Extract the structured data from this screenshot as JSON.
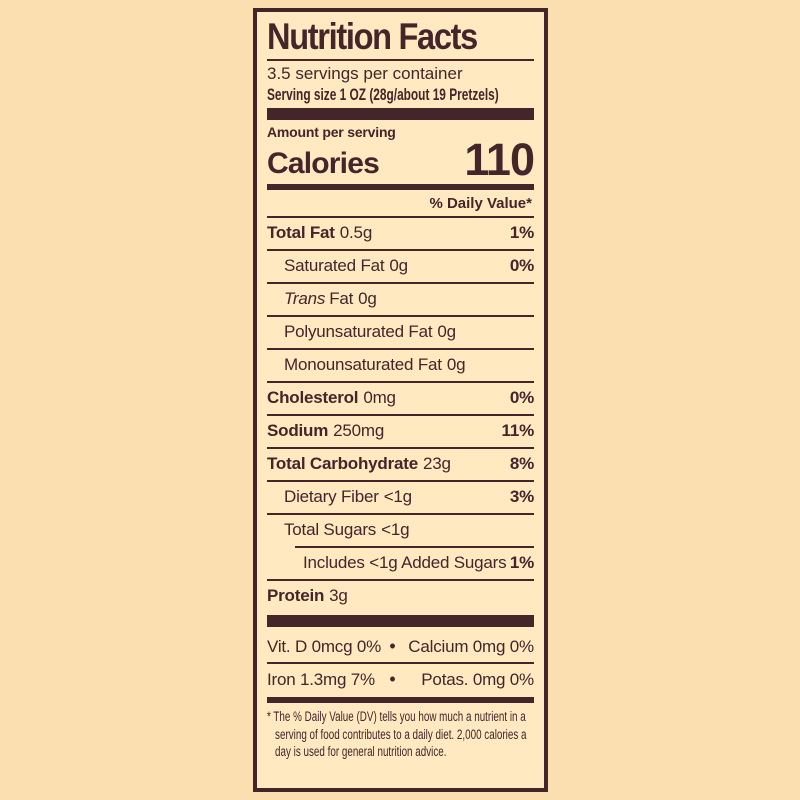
{
  "colors": {
    "page_bg": "#fcdfb1",
    "label_bg": "#fee9c1",
    "ink": "#43252a"
  },
  "label": {
    "title": "Nutrition Facts",
    "servings_per_container": "3.5 servings per container",
    "serving_size": "Serving size 1 OZ (28g/about 19 Pretzels)",
    "amount_per_serving": "Amount per serving",
    "calories_label": "Calories",
    "calories_value": "110",
    "daily_value_header": "% Daily Value*",
    "rows": [
      {
        "name": "Total Fat",
        "amount": "0.5g",
        "dv": "1%"
      },
      {
        "name": "Saturated Fat",
        "amount": "0g",
        "dv": "0%"
      },
      {
        "name_italic": "Trans",
        "name": "Fat",
        "amount": "0g",
        "dv": ""
      },
      {
        "name": "Polyunsaturated Fat",
        "amount": "0g",
        "dv": ""
      },
      {
        "name": "Monounsaturated Fat",
        "amount": "0g",
        "dv": ""
      },
      {
        "name": "Cholesterol",
        "amount": "0mg",
        "dv": "0%"
      },
      {
        "name": "Sodium",
        "amount": "250mg",
        "dv": "11%"
      },
      {
        "name": "Total Carbohydrate",
        "amount": "23g",
        "dv": "8%"
      },
      {
        "name": "Dietary Fiber",
        "amount": "<1g",
        "dv": "3%"
      },
      {
        "name": "Total Sugars",
        "amount": "<1g",
        "dv": ""
      },
      {
        "name": "Includes <1g Added Sugars",
        "amount": "",
        "dv": "1%"
      },
      {
        "name": "Protein",
        "amount": "3g",
        "dv": ""
      }
    ],
    "micros": {
      "bullet": "•",
      "rows": [
        {
          "left": "Vit. D 0mcg 0%",
          "right": "Calcium 0mg 0%"
        },
        {
          "left": "Iron 1.3mg 7%",
          "right": "Potas. 0mg 0%"
        }
      ]
    },
    "footnote": "* The % Daily Value (DV) tells you how much a nutrient in a serving of food contributes to a daily diet. 2,000 calories a day is used for general nutrition advice."
  }
}
